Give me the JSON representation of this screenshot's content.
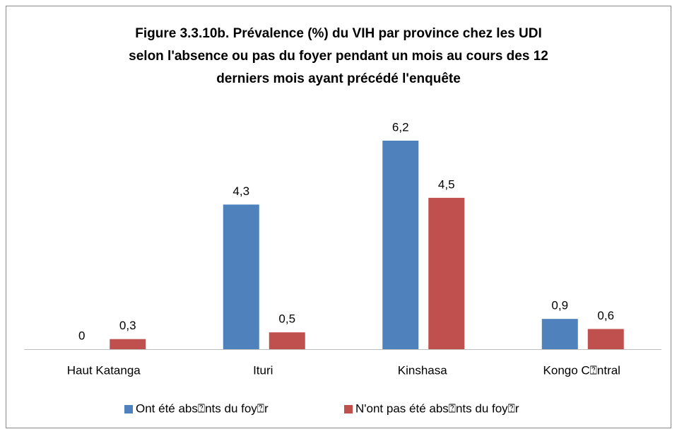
{
  "chart_data": {
    "type": "bar",
    "title": [
      "Figure 3.3.10b. Prévalence (%) du VIH par province chez les UDI",
      "selon l'absence ou pas du foyer pendant un mois au cours des 12",
      "derniers mois ayant précédé l'enquête"
    ],
    "categories": [
      "Haut Katanga",
      "Ituri",
      "Kinshasa",
      "Kongo C⍰ntral"
    ],
    "series": [
      {
        "name": "Ont été abs⍰nts du foy⍰r",
        "color": "#4f81bd",
        "values": [
          0,
          4.3,
          6.2,
          0.9
        ],
        "value_labels": [
          "0",
          "4,3",
          "6,2",
          "0,9"
        ]
      },
      {
        "name": "N'ont pas été abs⍰nts du foy⍰r",
        "color": "#c0504d",
        "values": [
          0.3,
          0.5,
          4.5,
          0.6
        ],
        "value_labels": [
          "0,3",
          "0,5",
          "4,5",
          "0,6"
        ]
      }
    ],
    "legend": "bottom"
  }
}
